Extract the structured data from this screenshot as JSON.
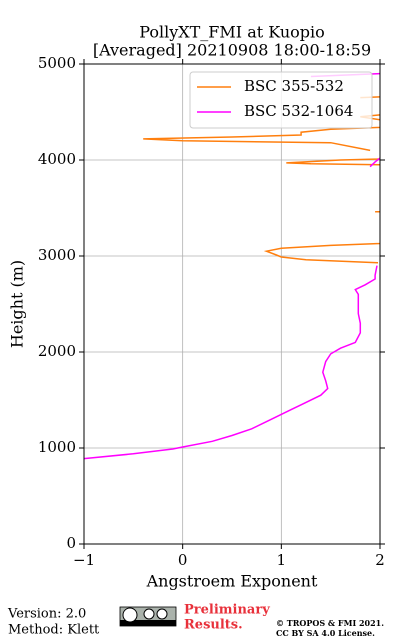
{
  "chart_data": {
    "type": "line",
    "title": [
      "PollyXT_FMI at Kuopio",
      "[Averaged] 20210908 18:00-18:59"
    ],
    "x_label": "Angstroem Exponent",
    "y_label": "Height (m)",
    "xlim": [
      -1,
      2
    ],
    "xticks": [
      {
        "value": -1,
        "label": "−1"
      },
      0,
      1,
      2
    ],
    "ylim": [
      0,
      5000
    ],
    "yticks": [
      0,
      1000,
      2000,
      3000,
      4000,
      5000
    ],
    "grid": true,
    "legend": "upper right",
    "series": [
      {
        "name": "BSC 355-532",
        "color": "#ff7f0e",
        "x": [
          1.98,
          1.25,
          1.0,
          0.95,
          0.85,
          1.0,
          1.5,
          2.0,
          2.1,
          null,
          1.95,
          2.1,
          null,
          2.0,
          1.3,
          1.05,
          1.6,
          2.0,
          2.1,
          null,
          1.9,
          1.5,
          0.0,
          -0.4,
          0.5,
          1.2,
          1.2,
          1.5,
          2.0,
          2.1,
          null,
          2.0,
          1.8,
          2.0,
          null,
          1.8,
          2.1
        ],
        "values": [
          2930,
          2960,
          2990,
          3010,
          3050,
          3080,
          3110,
          3130,
          3140,
          null,
          3460,
          3460,
          null,
          3950,
          3960,
          3970,
          4000,
          4010,
          4020,
          null,
          4100,
          4180,
          4200,
          4220,
          4240,
          4260,
          4290,
          4320,
          4340,
          4360,
          null,
          4420,
          4450,
          4470,
          null,
          4650,
          4660
        ]
      },
      {
        "name": "BSC 532-1064",
        "color": "#ff00ff",
        "x": [
          -1.0,
          -0.5,
          -0.1,
          0.0,
          0.3,
          0.5,
          0.7,
          0.9,
          1.1,
          1.2,
          1.4,
          1.47,
          1.45,
          1.42,
          1.45,
          1.5,
          1.6,
          1.75,
          1.8,
          1.8,
          1.78,
          1.78,
          1.75,
          1.85,
          1.95,
          1.95,
          1.97,
          null,
          1.9,
          1.95,
          2.0,
          null,
          1.3,
          2.0
        ],
        "values": [
          890,
          940,
          990,
          1010,
          1070,
          1130,
          1200,
          1300,
          1400,
          1450,
          1550,
          1620,
          1700,
          1790,
          1900,
          1980,
          2040,
          2100,
          2200,
          2300,
          2400,
          2600,
          2650,
          2700,
          2760,
          2800,
          2900,
          null,
          3930,
          3980,
          4020,
          null,
          4870,
          4900
        ]
      }
    ]
  },
  "footer": {
    "version": "Version: 2.0",
    "method": "Method: Klett",
    "preliminary": [
      "Preliminary",
      "Results."
    ],
    "copyright": [
      "© TROPOS & FMI 2021.",
      "CC BY SA 4.0 License."
    ]
  }
}
